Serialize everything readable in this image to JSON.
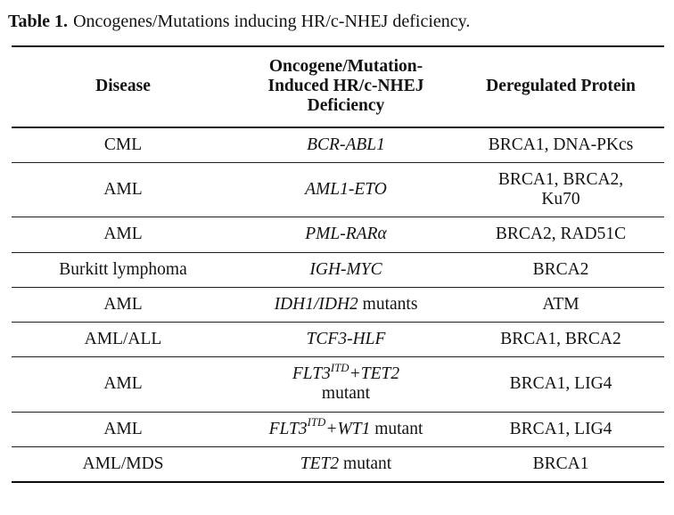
{
  "caption": {
    "label": "Table 1.",
    "text": "Oncogenes/Mutations inducing HR/c-NHEJ deficiency."
  },
  "table": {
    "columns": [
      {
        "label": "Disease"
      },
      {
        "label": "Oncogene/Mutation-Induced HR/c-NHEJ Deficiency",
        "lines": [
          "Oncogene/Mutation-",
          "Induced HR/c-NHEJ",
          "Deficiency"
        ]
      },
      {
        "label": "Deregulated Protein"
      }
    ],
    "rows": [
      {
        "disease": "CML",
        "gene": "BCR-ABL1",
        "protein": "BRCA1, DNA-PKcs"
      },
      {
        "disease": "AML",
        "gene": "AML1-ETO",
        "protein_line_1": "BRCA1, BRCA2,",
        "protein_line_2": "Ku70"
      },
      {
        "disease": "AML",
        "gene": "PML-RARα",
        "protein": "BRCA2, RAD51C"
      },
      {
        "disease": "Burkitt lymphoma",
        "gene": "IGH-MYC",
        "protein": "BRCA2"
      },
      {
        "disease": "AML",
        "gene": "IDH1/IDH2",
        "plain": " mutants",
        "protein": "ATM"
      },
      {
        "disease": "AML/ALL",
        "gene": "TCF3-HLF",
        "protein": "BRCA1, BRCA2"
      },
      {
        "disease": "AML",
        "gene": "FLT3",
        "sup": "ITD",
        "gene_2": "+TET2",
        "plain": "mutant",
        "protein": "BRCA1, LIG4"
      },
      {
        "disease": "AML",
        "gene": "FLT3",
        "sup": "ITD",
        "gene_2": "+WT1",
        "plain": " mutant",
        "protein": "BRCA1, LIG4"
      },
      {
        "disease": "AML/MDS",
        "gene": "TET2",
        "plain": " mutant",
        "protein": "BRCA1"
      }
    ],
    "text_color": "#131313",
    "rule_color": "#0d0d0d",
    "background_color": "#ffffff"
  }
}
